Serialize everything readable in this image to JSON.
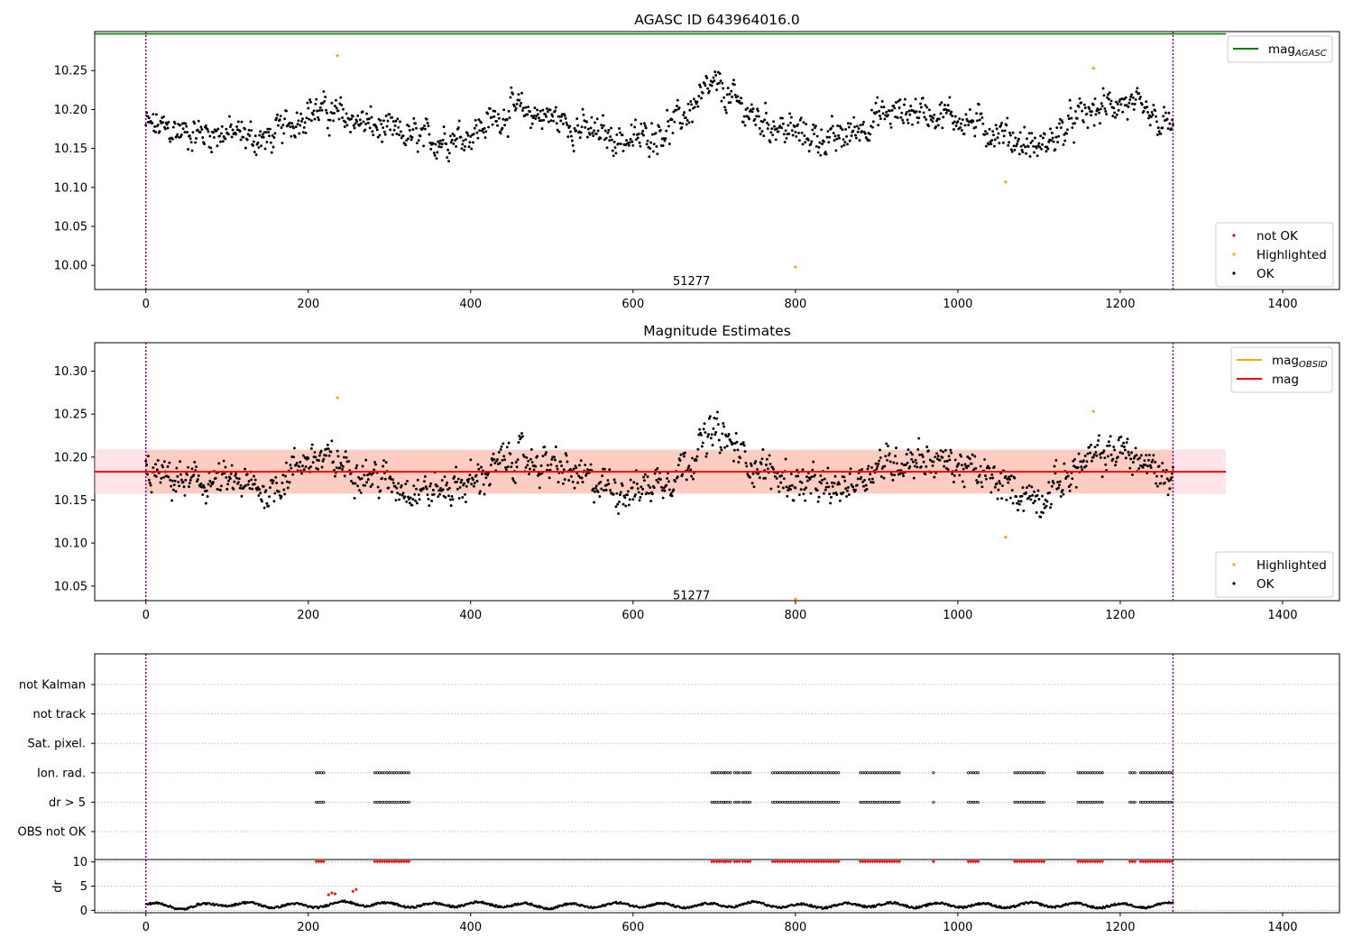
{
  "figure": {
    "background": "#ffffff",
    "colors": {
      "ok": "#000000",
      "highlighted": "#ffa500",
      "not_ok": "#ff0000",
      "mag_agasc": "#008000",
      "mag_obsid": "#ffa500",
      "mag": "#ff0000",
      "band_outer": "#ffc0cb",
      "band_inner": "#ffa07a",
      "obs_boundary": "#800080",
      "grid": "#b0b0b0"
    }
  },
  "chart_data": [
    {
      "type": "scatter",
      "title": "AGASC ID 643964016.0",
      "xlabel": "",
      "ylabel": "",
      "xlim": [
        -63,
        1470
      ],
      "ylim": [
        9.969,
        10.3
      ],
      "xticks": [
        0,
        200,
        400,
        600,
        800,
        1000,
        1200,
        1400
      ],
      "xtick_labels": [
        "0",
        "200",
        "400",
        "600",
        "800",
        "1000",
        "1200",
        "1400"
      ],
      "yticks": [
        10.0,
        10.05,
        10.1,
        10.15,
        10.2,
        10.25
      ],
      "ytick_labels": [
        "10.00",
        "10.05",
        "10.10",
        "10.15",
        "10.20",
        "10.25"
      ],
      "annotations": [
        {
          "x": 632,
          "y": 9.985,
          "text": "51277"
        }
      ],
      "vlines": [
        0,
        1265
      ],
      "hlines": [
        {
          "name": "mag_AGASC",
          "y": 10.297,
          "x": [
            -63,
            1330
          ]
        }
      ],
      "legends": [
        {
          "position": "upper right",
          "entries": [
            {
              "label_main": "mag",
              "label_sub": "AGASC",
              "kind": "line",
              "color": "#008000"
            }
          ]
        },
        {
          "position": "lower right",
          "entries": [
            {
              "label": "not OK",
              "kind": "dot",
              "color": "#ff0000"
            },
            {
              "label": "Highlighted",
              "kind": "dot",
              "color": "#ffa500"
            },
            {
              "label": "OK",
              "kind": "dot",
              "color": "#000000"
            }
          ]
        }
      ],
      "series": [
        {
          "name": "OK",
          "color": "#000000",
          "x": [
            0,
            50,
            100,
            150,
            200,
            250,
            300,
            350,
            400,
            450,
            500,
            550,
            600,
            650,
            700,
            750,
            800,
            850,
            900,
            950,
            1000,
            1050,
            1100,
            1150,
            1200,
            1250
          ],
          "y": [
            10.18,
            10.17,
            10.17,
            10.16,
            10.2,
            10.19,
            10.17,
            10.16,
            10.17,
            10.2,
            10.19,
            10.17,
            10.16,
            10.18,
            10.23,
            10.19,
            10.17,
            10.16,
            10.19,
            10.2,
            10.19,
            10.17,
            10.15,
            10.19,
            10.21,
            10.18
          ],
          "x_range": [
            0,
            1265
          ],
          "n_points": 1266
        },
        {
          "name": "Highlighted",
          "color": "#ffa500",
          "x": [
            236,
            800,
            1059,
            1167
          ],
          "y": [
            10.269,
            9.998,
            10.107,
            10.253
          ]
        }
      ]
    },
    {
      "type": "scatter",
      "title": "Magnitude Estimates",
      "xlabel": "",
      "ylabel": "",
      "xlim": [
        -63,
        1470
      ],
      "ylim": [
        10.033,
        10.333
      ],
      "xticks": [
        0,
        200,
        400,
        600,
        800,
        1000,
        1200,
        1400
      ],
      "xtick_labels": [
        "0",
        "200",
        "400",
        "600",
        "800",
        "1000",
        "1200",
        "1400"
      ],
      "yticks": [
        10.05,
        10.1,
        10.15,
        10.2,
        10.25,
        10.3
      ],
      "ytick_labels": [
        "10.05",
        "10.10",
        "10.15",
        "10.20",
        "10.25",
        "10.30"
      ],
      "annotations": [
        {
          "x": 632,
          "y": 10.044,
          "text": "51277"
        }
      ],
      "vlines": [
        0,
        1265
      ],
      "mag": 10.183,
      "mag_band": [
        10.157,
        10.209
      ],
      "mag_band_x": [
        -63,
        1330
      ],
      "mag_obsid": 10.183,
      "mag_obsid_band": [
        10.158,
        10.208
      ],
      "mag_obsid_x": [
        0,
        1265
      ],
      "legends": [
        {
          "position": "upper right",
          "entries": [
            {
              "label_main": "mag",
              "label_sub": "OBSID",
              "kind": "line",
              "color": "#ffa500"
            },
            {
              "label": "mag",
              "kind": "line",
              "color": "#ff0000"
            }
          ]
        },
        {
          "position": "lower right",
          "entries": [
            {
              "label": "Highlighted",
              "kind": "dot",
              "color": "#ffa500"
            },
            {
              "label": "OK",
              "kind": "dot",
              "color": "#000000"
            }
          ]
        }
      ],
      "series": [
        {
          "name": "OK",
          "color": "#000000",
          "x": [
            0,
            50,
            100,
            150,
            200,
            250,
            300,
            350,
            400,
            450,
            500,
            550,
            600,
            650,
            700,
            750,
            800,
            850,
            900,
            950,
            1000,
            1050,
            1100,
            1150,
            1200,
            1250
          ],
          "y": [
            10.18,
            10.17,
            10.17,
            10.16,
            10.2,
            10.19,
            10.17,
            10.16,
            10.17,
            10.2,
            10.19,
            10.17,
            10.16,
            10.18,
            10.23,
            10.19,
            10.17,
            10.16,
            10.19,
            10.2,
            10.19,
            10.17,
            10.15,
            10.19,
            10.21,
            10.18
          ],
          "x_range": [
            0,
            1265
          ],
          "n_points": 1266
        },
        {
          "name": "Highlighted",
          "color": "#ffa500",
          "x": [
            236,
            800,
            1059,
            1167
          ],
          "y": [
            10.269,
            10.035,
            10.107,
            10.253
          ]
        }
      ]
    },
    {
      "type": "scatter",
      "title": "",
      "xlabel": "",
      "ylabel": "",
      "xlim": [
        -63,
        1470
      ],
      "categories": [
        "not Kalman",
        "not track",
        "Sat. pixel.",
        "Ion. rad.",
        "dr > 5",
        "OBS not OK"
      ],
      "xticks": [
        0,
        200,
        400,
        600,
        800,
        1000,
        1200,
        1400
      ],
      "xtick_labels": [
        "0",
        "200",
        "400",
        "600",
        "800",
        "1000",
        "1200",
        "1400"
      ],
      "vlines": [
        0,
        1265
      ],
      "flag_ranges": [
        [
          210,
          220
        ],
        [
          282,
          326
        ],
        [
          697,
          712
        ],
        [
          714,
          722
        ],
        [
          725,
          732
        ],
        [
          735,
          745
        ],
        [
          772,
          853
        ],
        [
          880,
          928
        ],
        [
          970,
          972
        ],
        [
          1013,
          1025
        ],
        [
          1070,
          1108
        ],
        [
          1148,
          1178
        ],
        [
          1212,
          1218
        ],
        [
          1225,
          1265
        ]
      ],
      "flagged_categories": [
        "Ion. rad.",
        "dr > 5"
      ],
      "flagged_point_spacing": 3
    },
    {
      "type": "scatter",
      "title": "",
      "xlabel": "",
      "ylabel": "dr",
      "xlim": [
        -63,
        1470
      ],
      "ylim": [
        -0.5,
        10.5
      ],
      "yticks": [
        0,
        5,
        10
      ],
      "ytick_labels": [
        "0",
        "5",
        "10"
      ],
      "xticks": [
        0,
        200,
        400,
        600,
        800,
        1000,
        1200,
        1400
      ],
      "xtick_labels": [
        "0",
        "200",
        "400",
        "600",
        "800",
        "1000",
        "1200",
        "1400"
      ],
      "vlines": [
        0,
        1265
      ],
      "series": [
        {
          "name": "dr",
          "color": "#000000",
          "x": [
            0,
            50,
            100,
            150,
            200,
            250,
            300,
            350,
            400,
            450,
            500,
            550,
            600,
            650,
            700,
            750,
            800,
            850,
            900,
            950,
            1000,
            1050,
            1100,
            1150,
            1200,
            1250
          ],
          "y": [
            1.2,
            0.6,
            1.4,
            1.0,
            0.9,
            1.5,
            1.1,
            1.0,
            1.3,
            1.1,
            0.8,
            1.0,
            1.2,
            0.9,
            1.0,
            1.3,
            0.8,
            1.0,
            1.2,
            1.0,
            1.1,
            0.9,
            1.2,
            1.0,
            0.9,
            1.1
          ],
          "x_range": [
            0,
            1265
          ],
          "n_points": 1266
        },
        {
          "name": "dr not OK",
          "color": "#ff0000",
          "x": [
            225,
            229,
            233,
            255,
            259
          ],
          "y": [
            3.2,
            3.6,
            3.4,
            3.9,
            4.3
          ]
        },
        {
          "name": "dr clipped",
          "color": "#ff0000",
          "y": 10,
          "x_ranges": [
            [
              210,
              220
            ],
            [
              282,
              326
            ],
            [
              697,
              712
            ],
            [
              714,
              722
            ],
            [
              725,
              732
            ],
            [
              735,
              745
            ],
            [
              772,
              853
            ],
            [
              880,
              928
            ],
            [
              970,
              972
            ],
            [
              1013,
              1025
            ],
            [
              1070,
              1108
            ],
            [
              1148,
              1178
            ],
            [
              1212,
              1218
            ],
            [
              1225,
              1265
            ]
          ]
        }
      ]
    }
  ]
}
